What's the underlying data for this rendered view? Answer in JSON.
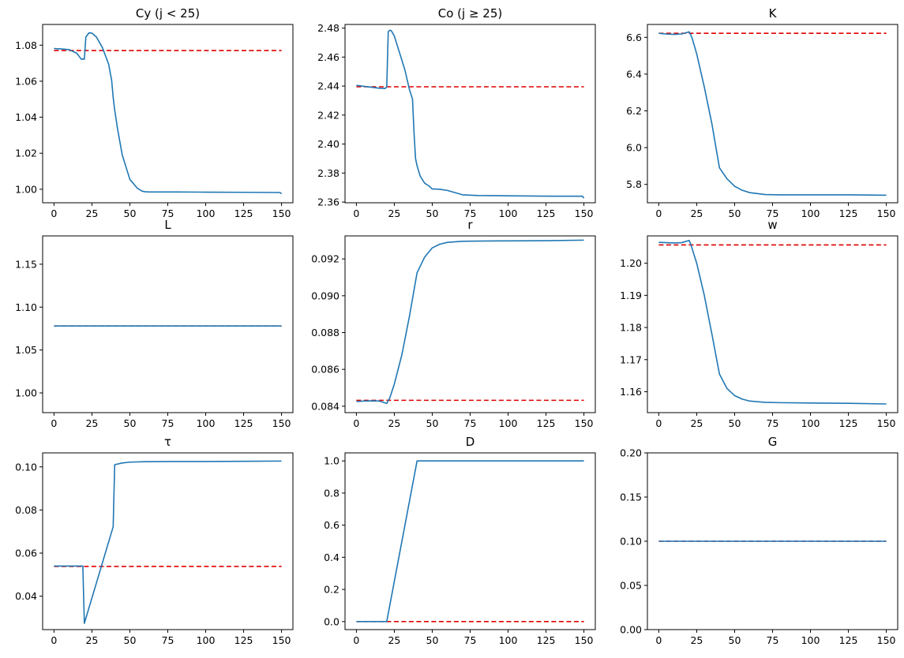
{
  "colors": {
    "series": "#1f77b4",
    "reference": "#e00000"
  },
  "chart_data": [
    {
      "type": "line",
      "title": "Cy (j < 25)",
      "xlim": [
        -7.5,
        157.5
      ],
      "ylim": [
        0.9925,
        1.0915
      ],
      "xticks": [
        0,
        25,
        50,
        75,
        100,
        125,
        150
      ],
      "xtick_labels": [
        "0",
        "25",
        "50",
        "75",
        "100",
        "125",
        "150"
      ],
      "yticks": [
        1.0,
        1.02,
        1.04,
        1.06,
        1.08
      ],
      "ytick_labels": [
        "1.00",
        "1.02",
        "1.04",
        "1.06",
        "1.08"
      ],
      "series": [
        {
          "style": "solid",
          "x": [
            0,
            5,
            10,
            15,
            18,
            19,
            20,
            21,
            23,
            25,
            28,
            32,
            36,
            38,
            39,
            40,
            42,
            45,
            50,
            55,
            58,
            60,
            63,
            70,
            80,
            100,
            125,
            148,
            149,
            150
          ],
          "y": [
            1.0781,
            1.0779,
            1.0775,
            1.0755,
            1.0722,
            1.0723,
            1.0722,
            1.0845,
            1.0868,
            1.0867,
            1.0845,
            1.0785,
            1.0695,
            1.0605,
            1.051,
            1.044,
            1.033,
            1.019,
            1.0055,
            1.0005,
            0.999,
            0.9986,
            0.9985,
            0.9985,
            0.9985,
            0.9984,
            0.9983,
            0.9982,
            0.9982,
            0.9975
          ]
        },
        {
          "style": "dashed",
          "x": [
            0,
            150
          ],
          "y": [
            1.077,
            1.077
          ]
        }
      ]
    },
    {
      "type": "line",
      "title": "Co (j ≥ 25)",
      "xlim": [
        -7.5,
        157.5
      ],
      "ylim": [
        2.3595,
        2.4825
      ],
      "xticks": [
        0,
        25,
        50,
        75,
        100,
        125,
        150
      ],
      "xtick_labels": [
        "0",
        "25",
        "50",
        "75",
        "100",
        "125",
        "150"
      ],
      "yticks": [
        2.36,
        2.38,
        2.4,
        2.42,
        2.44,
        2.46,
        2.48
      ],
      "ytick_labels": [
        "2.36",
        "2.38",
        "2.40",
        "2.42",
        "2.44",
        "2.46",
        "2.48"
      ],
      "series": [
        {
          "style": "solid",
          "x": [
            0,
            5,
            10,
            15,
            19,
            20,
            21,
            22,
            23,
            25,
            28,
            32,
            35,
            37,
            38,
            39,
            40,
            42,
            45,
            48,
            50,
            52,
            55,
            60,
            65,
            70,
            80,
            100,
            130,
            148,
            149,
            150
          ],
          "y": [
            2.4405,
            2.4398,
            2.4392,
            2.4385,
            2.4383,
            2.4395,
            2.4775,
            2.4785,
            2.4782,
            2.4745,
            2.4645,
            2.451,
            2.4375,
            2.431,
            2.4075,
            2.39,
            2.385,
            2.378,
            2.373,
            2.371,
            2.369,
            2.369,
            2.3688,
            2.368,
            2.3665,
            2.365,
            2.3645,
            2.3643,
            2.364,
            2.364,
            2.364,
            2.3627
          ]
        },
        {
          "style": "dashed",
          "x": [
            0,
            150
          ],
          "y": [
            2.4395,
            2.4395
          ]
        }
      ]
    },
    {
      "type": "line",
      "title": "K",
      "xlim": [
        -7.5,
        157.5
      ],
      "ylim": [
        5.7,
        6.67
      ],
      "xticks": [
        0,
        25,
        50,
        75,
        100,
        125,
        150
      ],
      "xtick_labels": [
        "0",
        "25",
        "50",
        "75",
        "100",
        "125",
        "150"
      ],
      "yticks": [
        5.8,
        6.0,
        6.2,
        6.4,
        6.6
      ],
      "ytick_labels": [
        "5.8",
        "6.0",
        "6.2",
        "6.4",
        "6.6"
      ],
      "series": [
        {
          "style": "solid",
          "x": [
            0,
            5,
            10,
            15,
            18,
            20,
            21,
            22,
            25,
            30,
            35,
            40,
            45,
            50,
            55,
            60,
            70,
            80,
            100,
            125,
            150
          ],
          "y": [
            6.622,
            6.618,
            6.616,
            6.618,
            6.625,
            6.63,
            6.615,
            6.595,
            6.51,
            6.33,
            6.13,
            5.89,
            5.83,
            5.79,
            5.768,
            5.755,
            5.745,
            5.743,
            5.743,
            5.743,
            5.741
          ]
        },
        {
          "style": "dashed",
          "x": [
            0,
            150
          ],
          "y": [
            6.622,
            6.622
          ]
        }
      ]
    },
    {
      "type": "line",
      "title": "L",
      "xlim": [
        -7.5,
        157.5
      ],
      "ylim": [
        0.977,
        1.183
      ],
      "xticks": [
        0,
        25,
        50,
        75,
        100,
        125,
        150
      ],
      "xtick_labels": [
        "0",
        "25",
        "50",
        "75",
        "100",
        "125",
        "150"
      ],
      "yticks": [
        1.0,
        1.05,
        1.1,
        1.15
      ],
      "ytick_labels": [
        "1.00",
        "1.05",
        "1.10",
        "1.15"
      ],
      "series": [
        {
          "style": "solid",
          "x": [
            0,
            150
          ],
          "y": [
            1.078,
            1.078
          ]
        },
        {
          "style": "dashed",
          "x": [
            0,
            150
          ],
          "y": [
            1.078,
            1.078
          ]
        }
      ]
    },
    {
      "type": "line",
      "title": "r",
      "xlim": [
        -7.5,
        157.5
      ],
      "ylim": [
        0.08365,
        0.09325
      ],
      "xticks": [
        0,
        25,
        50,
        75,
        100,
        125,
        150
      ],
      "xtick_labels": [
        "0",
        "25",
        "50",
        "75",
        "100",
        "125",
        "150"
      ],
      "yticks": [
        0.084,
        0.086,
        0.088,
        0.09,
        0.092
      ],
      "ytick_labels": [
        "0.084",
        "0.086",
        "0.088",
        "0.090",
        "0.092"
      ],
      "series": [
        {
          "style": "solid",
          "x": [
            0,
            5,
            10,
            15,
            18,
            20,
            21,
            22,
            25,
            30,
            35,
            40,
            45,
            50,
            55,
            60,
            70,
            80,
            100,
            125,
            150
          ],
          "y": [
            0.08425,
            0.08428,
            0.08429,
            0.08428,
            0.0842,
            0.08415,
            0.0843,
            0.08445,
            0.0852,
            0.0868,
            0.0889,
            0.09125,
            0.0921,
            0.0926,
            0.0928,
            0.0929,
            0.09296,
            0.09297,
            0.09298,
            0.09299,
            0.09302
          ]
        },
        {
          "style": "dashed",
          "x": [
            0,
            150
          ],
          "y": [
            0.08432,
            0.08432
          ]
        }
      ]
    },
    {
      "type": "line",
      "title": "w",
      "xlim": [
        -7.5,
        157.5
      ],
      "ylim": [
        1.1535,
        1.2085
      ],
      "xticks": [
        0,
        25,
        50,
        75,
        100,
        125,
        150
      ],
      "xtick_labels": [
        "0",
        "25",
        "50",
        "75",
        "100",
        "125",
        "150"
      ],
      "yticks": [
        1.16,
        1.17,
        1.18,
        1.19,
        1.2
      ],
      "ytick_labels": [
        "1.16",
        "1.17",
        "1.18",
        "1.19",
        "1.20"
      ],
      "series": [
        {
          "style": "solid",
          "x": [
            0,
            5,
            10,
            15,
            18,
            20,
            21,
            22,
            25,
            30,
            35,
            40,
            45,
            50,
            55,
            60,
            70,
            80,
            100,
            125,
            150
          ],
          "y": [
            1.2065,
            1.2064,
            1.2063,
            1.2064,
            1.2068,
            1.2071,
            1.206,
            1.2045,
            1.2,
            1.19,
            1.178,
            1.1655,
            1.161,
            1.1588,
            1.1577,
            1.1571,
            1.1567,
            1.1566,
            1.1565,
            1.1564,
            1.1562
          ]
        },
        {
          "style": "dashed",
          "x": [
            0,
            150
          ],
          "y": [
            1.2057,
            1.2057
          ]
        }
      ]
    },
    {
      "type": "line",
      "title": "τ",
      "xlim": [
        -7.5,
        157.5
      ],
      "ylim": [
        0.0245,
        0.1065
      ],
      "xticks": [
        0,
        25,
        50,
        75,
        100,
        125,
        150
      ],
      "xtick_labels": [
        "0",
        "25",
        "50",
        "75",
        "100",
        "125",
        "150"
      ],
      "yticks": [
        0.04,
        0.06,
        0.08,
        0.1
      ],
      "ytick_labels": [
        "0.04",
        "0.06",
        "0.08",
        "0.10"
      ],
      "series": [
        {
          "style": "solid",
          "x": [
            0,
            5,
            10,
            15,
            19,
            20,
            39,
            40,
            45,
            50,
            60,
            80,
            100,
            125,
            150
          ],
          "y": [
            0.054,
            0.054,
            0.054,
            0.054,
            0.054,
            0.0274,
            0.0722,
            0.101,
            0.1018,
            0.1022,
            0.1024,
            0.1025,
            0.1025,
            0.1026,
            0.1027
          ]
        },
        {
          "style": "dashed",
          "x": [
            0,
            150
          ],
          "y": [
            0.0538,
            0.0538
          ]
        }
      ]
    },
    {
      "type": "line",
      "title": "D",
      "xlim": [
        -7.5,
        157.5
      ],
      "ylim": [
        -0.05,
        1.05
      ],
      "xticks": [
        0,
        25,
        50,
        75,
        100,
        125,
        150
      ],
      "xtick_labels": [
        "0",
        "25",
        "50",
        "75",
        "100",
        "125",
        "150"
      ],
      "yticks": [
        0.0,
        0.2,
        0.4,
        0.6,
        0.8,
        1.0
      ],
      "ytick_labels": [
        "0.0",
        "0.2",
        "0.4",
        "0.6",
        "0.8",
        "1.0"
      ],
      "series": [
        {
          "style": "solid",
          "x": [
            0,
            20,
            40,
            150
          ],
          "y": [
            0,
            0,
            1,
            1
          ]
        },
        {
          "style": "dashed",
          "x": [
            0,
            150
          ],
          "y": [
            0,
            0
          ]
        }
      ]
    },
    {
      "type": "line",
      "title": "G",
      "xlim": [
        -7.5,
        157.5
      ],
      "ylim": [
        0.0,
        0.2
      ],
      "xticks": [
        0,
        25,
        50,
        75,
        100,
        125,
        150
      ],
      "xtick_labels": [
        "0",
        "25",
        "50",
        "75",
        "100",
        "125",
        "150"
      ],
      "yticks": [
        0.0,
        0.05,
        0.1,
        0.15,
        0.2
      ],
      "ytick_labels": [
        "0.00",
        "0.05",
        "0.10",
        "0.15",
        "0.20"
      ],
      "series": [
        {
          "style": "solid",
          "x": [
            0,
            150
          ],
          "y": [
            0.1,
            0.1
          ]
        },
        {
          "style": "dashed",
          "x": [
            0,
            150
          ],
          "y": [
            0.1,
            0.1
          ]
        }
      ]
    }
  ]
}
